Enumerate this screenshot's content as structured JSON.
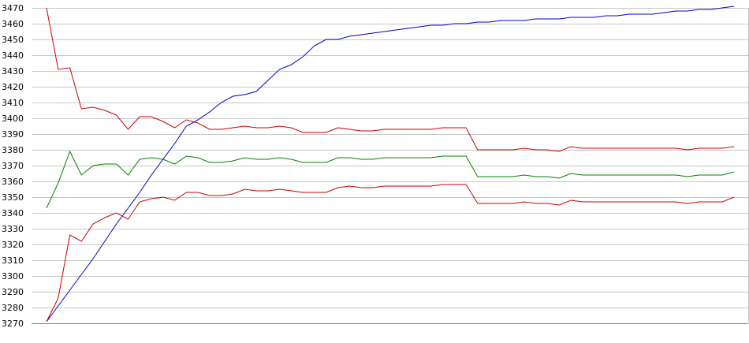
{
  "chart_data": {
    "type": "line",
    "title": "",
    "xlabel": "",
    "ylabel": "",
    "ylim": [
      3270,
      3470
    ],
    "yticks": [
      3270,
      3280,
      3290,
      3300,
      3310,
      3320,
      3330,
      3340,
      3350,
      3360,
      3370,
      3380,
      3390,
      3400,
      3410,
      3420,
      3430,
      3440,
      3450,
      3460,
      3470
    ],
    "xlim": [
      0,
      59
    ],
    "grid": "horizontal",
    "legend": "none",
    "x": [
      0,
      1,
      2,
      3,
      4,
      5,
      6,
      7,
      8,
      9,
      10,
      11,
      12,
      13,
      14,
      15,
      16,
      17,
      18,
      19,
      20,
      21,
      22,
      23,
      24,
      25,
      26,
      27,
      28,
      29,
      30,
      31,
      32,
      33,
      34,
      35,
      36,
      37,
      38,
      39,
      40,
      41,
      42,
      43,
      44,
      45,
      46,
      47,
      48,
      49,
      50,
      51,
      52,
      53,
      54,
      55,
      56,
      57,
      58,
      59
    ],
    "series": [
      {
        "color": "#0000cc",
        "values": [
          3271,
          3281,
          3291,
          3301,
          3311,
          3322,
          3333,
          3343,
          3353,
          3364,
          3374,
          3384,
          3395,
          3399,
          3404,
          3410,
          3414,
          3415,
          3417,
          3424,
          3431,
          3434,
          3439,
          3446,
          3450,
          3450,
          3452,
          3453,
          3454,
          3455,
          3456,
          3457,
          3458,
          3459,
          3459,
          3460,
          3460,
          3461,
          3461,
          3462,
          3462,
          3462,
          3463,
          3463,
          3463,
          3464,
          3464,
          3464,
          3465,
          3465,
          3466,
          3466,
          3466,
          3467,
          3468,
          3468,
          3469,
          3469,
          3470,
          3471
        ]
      },
      {
        "color": "#cc0000",
        "values": [
          3470,
          3431,
          3432,
          3406,
          3407,
          3405,
          3402,
          3393,
          3401,
          3401,
          3398,
          3394,
          3399,
          3397,
          3393,
          3393,
          3394,
          3395,
          3394,
          3394,
          3395,
          3394,
          3391,
          3391,
          3391,
          3394,
          3393,
          3392,
          3392,
          3393,
          3393,
          3393,
          3393,
          3393,
          3394,
          3394,
          3394,
          3380,
          3380,
          3380,
          3380,
          3381,
          3380,
          3380,
          3379,
          3382,
          3381,
          3381,
          3381,
          3381,
          3381,
          3381,
          3381,
          3381,
          3381,
          3380,
          3381,
          3381,
          3381,
          3382
        ]
      },
      {
        "color": "#008000",
        "values": [
          3343,
          3359,
          3379,
          3364,
          3370,
          3371,
          3371,
          3364,
          3374,
          3375,
          3374,
          3371,
          3376,
          3375,
          3372,
          3372,
          3373,
          3375,
          3374,
          3374,
          3375,
          3374,
          3372,
          3372,
          3372,
          3375,
          3375,
          3374,
          3374,
          3375,
          3375,
          3375,
          3375,
          3375,
          3376,
          3376,
          3376,
          3363,
          3363,
          3363,
          3363,
          3364,
          3363,
          3363,
          3362,
          3365,
          3364,
          3364,
          3364,
          3364,
          3364,
          3364,
          3364,
          3364,
          3364,
          3363,
          3364,
          3364,
          3364,
          3366
        ]
      },
      {
        "color": "#cc0000",
        "values": [
          3271,
          3286,
          3326,
          3322,
          3333,
          3337,
          3340,
          3336,
          3347,
          3349,
          3350,
          3348,
          3353,
          3353,
          3351,
          3351,
          3352,
          3355,
          3354,
          3354,
          3355,
          3354,
          3353,
          3353,
          3353,
          3356,
          3357,
          3356,
          3356,
          3357,
          3357,
          3357,
          3357,
          3357,
          3358,
          3358,
          3358,
          3346,
          3346,
          3346,
          3346,
          3347,
          3346,
          3346,
          3345,
          3348,
          3347,
          3347,
          3347,
          3347,
          3347,
          3347,
          3347,
          3347,
          3347,
          3346,
          3347,
          3347,
          3347,
          3350
        ]
      }
    ]
  }
}
